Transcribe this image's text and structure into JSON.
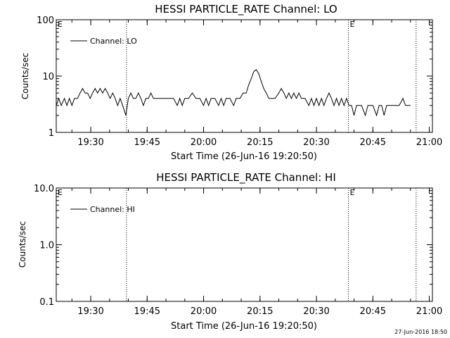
{
  "chart_data": [
    {
      "type": "line",
      "title": "HESSI PARTICLE_RATE Channel: LO",
      "xlabel": "Start Time (26-Jun-16 19:20:50)",
      "ylabel": "Counts/sec",
      "yscale": "log",
      "ylim": [
        1,
        100
      ],
      "yticks": [
        "1",
        "10",
        "100"
      ],
      "xlim_minutes_after_19_20_50": [
        0,
        100
      ],
      "xticks": [
        "19:30",
        "19:45",
        "20:00",
        "20:15",
        "20:30",
        "20:45",
        "21:00"
      ],
      "legend": {
        "position": "top-left",
        "label": "Channel: LO"
      },
      "event_markers": [
        {
          "time": "19:39:30",
          "label": ""
        },
        {
          "time": "20:38:30",
          "label": "E"
        },
        {
          "time": "20:56:30",
          "label": ""
        }
      ],
      "start_marker_label": "E",
      "series": [
        {
          "name": "Channel: LO",
          "points": [
            [
              "19:20:50",
              3
            ],
            [
              "19:21:30",
              4
            ],
            [
              "19:22:10",
              3
            ],
            [
              "19:23:00",
              4
            ],
            [
              "19:23:40",
              3
            ],
            [
              "19:24:20",
              4
            ],
            [
              "19:25:00",
              3
            ],
            [
              "19:25:40",
              4
            ],
            [
              "19:26:30",
              4
            ],
            [
              "19:27:10",
              5
            ],
            [
              "19:27:50",
              6
            ],
            [
              "19:28:30",
              5
            ],
            [
              "19:29:10",
              5
            ],
            [
              "19:29:50",
              4
            ],
            [
              "19:30:30",
              5
            ],
            [
              "19:31:10",
              6
            ],
            [
              "19:31:50",
              5
            ],
            [
              "19:32:30",
              6
            ],
            [
              "19:33:10",
              5
            ],
            [
              "19:33:50",
              6
            ],
            [
              "19:34:30",
              5
            ],
            [
              "19:35:10",
              4
            ],
            [
              "19:35:50",
              5
            ],
            [
              "19:36:30",
              4
            ],
            [
              "19:37:10",
              3
            ],
            [
              "19:37:50",
              4
            ],
            [
              "19:38:30",
              3
            ],
            [
              "19:39:20",
              2
            ],
            [
              "19:40:00",
              4
            ],
            [
              "19:40:40",
              5
            ],
            [
              "19:41:20",
              4
            ],
            [
              "19:42:00",
              4
            ],
            [
              "19:42:40",
              5
            ],
            [
              "19:43:20",
              4
            ],
            [
              "19:44:00",
              3
            ],
            [
              "19:44:40",
              4
            ],
            [
              "19:45:20",
              4
            ],
            [
              "19:46:00",
              5
            ],
            [
              "19:46:40",
              4
            ],
            [
              "19:47:20",
              4
            ],
            [
              "19:48:00",
              4
            ],
            [
              "19:50:00",
              4
            ],
            [
              "19:52:00",
              4
            ],
            [
              "19:53:00",
              3
            ],
            [
              "19:53:40",
              4
            ],
            [
              "19:54:20",
              3
            ],
            [
              "19:55:00",
              4
            ],
            [
              "19:56:00",
              4
            ],
            [
              "19:57:00",
              5
            ],
            [
              "19:58:00",
              4
            ],
            [
              "19:59:00",
              4
            ],
            [
              "20:00:00",
              3
            ],
            [
              "20:00:40",
              4
            ],
            [
              "20:01:20",
              3
            ],
            [
              "20:02:00",
              4
            ],
            [
              "20:03:00",
              4
            ],
            [
              "20:04:00",
              3
            ],
            [
              "20:04:40",
              4
            ],
            [
              "20:05:20",
              3
            ],
            [
              "20:06:00",
              4
            ],
            [
              "20:07:00",
              4
            ],
            [
              "20:08:00",
              3
            ],
            [
              "20:08:40",
              4
            ],
            [
              "20:09:40",
              4
            ],
            [
              "20:10:30",
              5
            ],
            [
              "20:11:20",
              5
            ],
            [
              "20:12:00",
              7
            ],
            [
              "20:12:40",
              9
            ],
            [
              "20:13:20",
              12
            ],
            [
              "20:14:00",
              13
            ],
            [
              "20:14:40",
              11
            ],
            [
              "20:15:20",
              8
            ],
            [
              "20:16:00",
              6
            ],
            [
              "20:16:40",
              5
            ],
            [
              "20:17:20",
              4
            ],
            [
              "20:18:00",
              4
            ],
            [
              "20:19:00",
              4
            ],
            [
              "20:20:00",
              5
            ],
            [
              "20:20:40",
              6
            ],
            [
              "20:21:20",
              5
            ],
            [
              "20:22:00",
              4
            ],
            [
              "20:22:40",
              5
            ],
            [
              "20:23:20",
              4
            ],
            [
              "20:24:00",
              5
            ],
            [
              "20:24:40",
              4
            ],
            [
              "20:25:20",
              5
            ],
            [
              "20:26:00",
              4
            ],
            [
              "20:27:00",
              4
            ],
            [
              "20:28:00",
              3
            ],
            [
              "20:28:40",
              4
            ],
            [
              "20:29:20",
              3
            ],
            [
              "20:30:00",
              4
            ],
            [
              "20:30:40",
              3
            ],
            [
              "20:31:20",
              4
            ],
            [
              "20:32:00",
              3
            ],
            [
              "20:32:40",
              4
            ],
            [
              "20:33:20",
              5
            ],
            [
              "20:34:00",
              4
            ],
            [
              "20:34:40",
              3
            ],
            [
              "20:35:20",
              4
            ],
            [
              "20:36:00",
              3
            ],
            [
              "20:36:40",
              4
            ],
            [
              "20:37:20",
              3
            ],
            [
              "20:38:00",
              4
            ],
            [
              "20:38:40",
              3
            ],
            [
              "20:39:20",
              3
            ],
            [
              "20:40:00",
              2
            ],
            [
              "20:40:40",
              3
            ],
            [
              "20:41:20",
              3
            ],
            [
              "20:42:00",
              3
            ],
            [
              "20:43:00",
              2
            ],
            [
              "20:43:40",
              3
            ],
            [
              "20:44:20",
              3
            ],
            [
              "20:45:00",
              3
            ],
            [
              "20:46:00",
              2
            ],
            [
              "20:46:40",
              3
            ],
            [
              "20:47:20",
              3
            ],
            [
              "20:48:00",
              2
            ],
            [
              "20:48:40",
              3
            ],
            [
              "20:49:20",
              3
            ],
            [
              "20:51:00",
              3
            ],
            [
              "20:52:00",
              3
            ],
            [
              "20:53:00",
              4
            ],
            [
              "20:53:40",
              3
            ],
            [
              "20:55:00",
              3
            ]
          ]
        }
      ]
    },
    {
      "type": "line",
      "title": "HESSI PARTICLE_RATE Channel: HI",
      "xlabel": "Start Time (26-Jun-16 19:20:50)",
      "ylabel": "Counts/sec",
      "yscale": "log",
      "ylim": [
        0.1,
        10
      ],
      "yticks": [
        "0.1",
        "1.0",
        "10.0"
      ],
      "xticks": [
        "19:30",
        "19:45",
        "20:00",
        "20:15",
        "20:30",
        "20:45",
        "21:00"
      ],
      "legend": {
        "position": "top-left",
        "label": "Channel: HI"
      },
      "event_markers": [
        {
          "time": "19:39:30",
          "label": ""
        },
        {
          "time": "20:38:30",
          "label": "E"
        },
        {
          "time": "20:56:30",
          "label": ""
        }
      ],
      "start_marker_label": "E",
      "series": [
        {
          "name": "Channel: HI",
          "points": []
        }
      ]
    }
  ],
  "footer": {
    "timestamp": "27-Jun-2016 18:50"
  }
}
